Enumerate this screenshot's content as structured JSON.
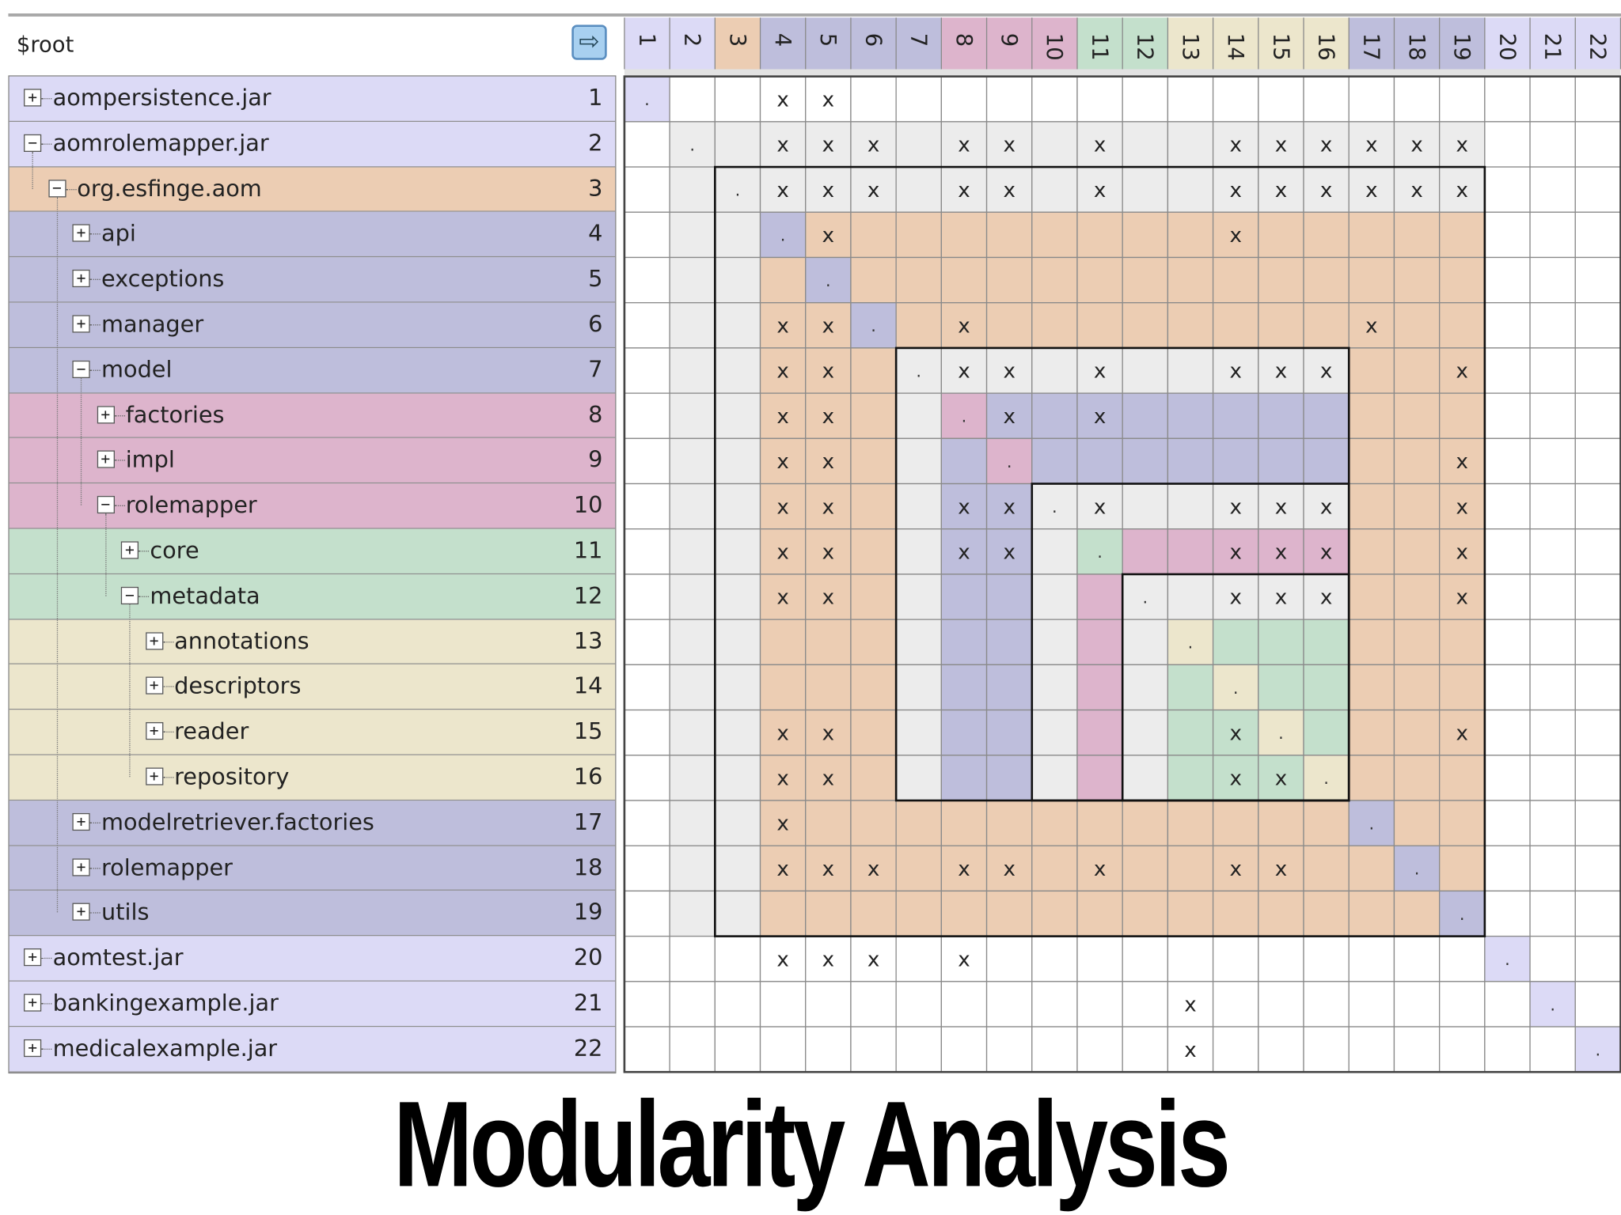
{
  "root": {
    "label": "$root",
    "button_icon": "arrow-right-icon"
  },
  "colors": {
    "white": "#ffffff",
    "lavender": "#dcdaf6",
    "peach": "#eccdb3",
    "blue": "#bebedc",
    "pink": "#ddb4cc",
    "mint": "#c4e0cc",
    "cream": "#ece6cc",
    "grey": "#ececec",
    "grid": "#8a8a8a",
    "box_border": "#111111"
  },
  "rows": [
    {
      "num": "1",
      "label": "aompersistence.jar",
      "level": 0,
      "expanded": false,
      "color": "lavender"
    },
    {
      "num": "2",
      "label": "aomrolemapper.jar",
      "level": 0,
      "expanded": true,
      "color": "lavender"
    },
    {
      "num": "3",
      "label": "org.esfinge.aom",
      "level": 1,
      "expanded": true,
      "color": "peach"
    },
    {
      "num": "4",
      "label": "api",
      "level": 2,
      "expanded": false,
      "color": "blue"
    },
    {
      "num": "5",
      "label": "exceptions",
      "level": 2,
      "expanded": false,
      "color": "blue"
    },
    {
      "num": "6",
      "label": "manager",
      "level": 2,
      "expanded": false,
      "color": "blue"
    },
    {
      "num": "7",
      "label": "model",
      "level": 2,
      "expanded": true,
      "color": "blue"
    },
    {
      "num": "8",
      "label": "factories",
      "level": 3,
      "expanded": false,
      "color": "pink"
    },
    {
      "num": "9",
      "label": "impl",
      "level": 3,
      "expanded": false,
      "color": "pink"
    },
    {
      "num": "10",
      "label": "rolemapper",
      "level": 3,
      "expanded": true,
      "color": "pink"
    },
    {
      "num": "11",
      "label": "core",
      "level": 4,
      "expanded": false,
      "color": "mint"
    },
    {
      "num": "12",
      "label": "metadata",
      "level": 4,
      "expanded": true,
      "color": "mint"
    },
    {
      "num": "13",
      "label": "annotations",
      "level": 5,
      "expanded": false,
      "color": "cream"
    },
    {
      "num": "14",
      "label": "descriptors",
      "level": 5,
      "expanded": false,
      "color": "cream"
    },
    {
      "num": "15",
      "label": "reader",
      "level": 5,
      "expanded": false,
      "color": "cream"
    },
    {
      "num": "16",
      "label": "repository",
      "level": 5,
      "expanded": false,
      "color": "cream"
    },
    {
      "num": "17",
      "label": "modelretriever.factories",
      "level": 2,
      "expanded": false,
      "color": "blue"
    },
    {
      "num": "18",
      "label": "rolemapper",
      "level": 2,
      "expanded": false,
      "color": "blue"
    },
    {
      "num": "19",
      "label": "utils",
      "level": 2,
      "expanded": false,
      "color": "blue"
    },
    {
      "num": "20",
      "label": "aomtest.jar",
      "level": 0,
      "expanded": false,
      "color": "lavender"
    },
    {
      "num": "21",
      "label": "bankingexample.jar",
      "level": 0,
      "expanded": false,
      "color": "lavender"
    },
    {
      "num": "22",
      "label": "medicalexample.jar",
      "level": 0,
      "expanded": false,
      "color": "lavender"
    }
  ],
  "column_header_colors": [
    "lavender",
    "lavender",
    "peach",
    "blue",
    "blue",
    "blue",
    "blue",
    "pink",
    "pink",
    "pink",
    "mint",
    "mint",
    "cream",
    "cream",
    "cream",
    "cream",
    "blue",
    "blue",
    "blue",
    "lavender",
    "lavender",
    "lavender"
  ],
  "matrix_fill": [
    [
      "lavender",
      "W",
      "W",
      "W",
      "W",
      "W",
      "W",
      "W",
      "W",
      "W",
      "W",
      "W",
      "W",
      "W",
      "W",
      "W",
      "W",
      "W",
      "W",
      "W",
      "W",
      "W"
    ],
    [
      "W",
      "grey",
      "grey",
      "grey",
      "grey",
      "grey",
      "grey",
      "grey",
      "grey",
      "grey",
      "grey",
      "grey",
      "grey",
      "grey",
      "grey",
      "grey",
      "grey",
      "grey",
      "grey",
      "W",
      "W",
      "W"
    ],
    [
      "W",
      "grey",
      "grey",
      "grey",
      "grey",
      "grey",
      "grey",
      "grey",
      "grey",
      "grey",
      "grey",
      "grey",
      "grey",
      "grey",
      "grey",
      "grey",
      "grey",
      "grey",
      "grey",
      "W",
      "W",
      "W"
    ],
    [
      "W",
      "grey",
      "grey",
      "blue",
      "peach",
      "peach",
      "peach",
      "peach",
      "peach",
      "peach",
      "peach",
      "peach",
      "peach",
      "peach",
      "peach",
      "peach",
      "peach",
      "peach",
      "peach",
      "W",
      "W",
      "W"
    ],
    [
      "W",
      "grey",
      "grey",
      "peach",
      "blue",
      "peach",
      "peach",
      "peach",
      "peach",
      "peach",
      "peach",
      "peach",
      "peach",
      "peach",
      "peach",
      "peach",
      "peach",
      "peach",
      "peach",
      "W",
      "W",
      "W"
    ],
    [
      "W",
      "grey",
      "grey",
      "peach",
      "peach",
      "blue",
      "peach",
      "peach",
      "peach",
      "peach",
      "peach",
      "peach",
      "peach",
      "peach",
      "peach",
      "peach",
      "peach",
      "peach",
      "peach",
      "W",
      "W",
      "W"
    ],
    [
      "W",
      "grey",
      "grey",
      "peach",
      "peach",
      "peach",
      "grey",
      "grey",
      "grey",
      "grey",
      "grey",
      "grey",
      "grey",
      "grey",
      "grey",
      "grey",
      "peach",
      "peach",
      "peach",
      "W",
      "W",
      "W"
    ],
    [
      "W",
      "grey",
      "grey",
      "peach",
      "peach",
      "peach",
      "grey",
      "pink",
      "blue",
      "blue",
      "blue",
      "blue",
      "blue",
      "blue",
      "blue",
      "blue",
      "peach",
      "peach",
      "peach",
      "W",
      "W",
      "W"
    ],
    [
      "W",
      "grey",
      "grey",
      "peach",
      "peach",
      "peach",
      "grey",
      "blue",
      "pink",
      "blue",
      "blue",
      "blue",
      "blue",
      "blue",
      "blue",
      "blue",
      "peach",
      "peach",
      "peach",
      "W",
      "W",
      "W"
    ],
    [
      "W",
      "grey",
      "grey",
      "peach",
      "peach",
      "peach",
      "grey",
      "blue",
      "blue",
      "grey",
      "grey",
      "grey",
      "grey",
      "grey",
      "grey",
      "grey",
      "peach",
      "peach",
      "peach",
      "W",
      "W",
      "W"
    ],
    [
      "W",
      "grey",
      "grey",
      "peach",
      "peach",
      "peach",
      "grey",
      "blue",
      "blue",
      "grey",
      "mint",
      "pink",
      "pink",
      "pink",
      "pink",
      "pink",
      "peach",
      "peach",
      "peach",
      "W",
      "W",
      "W"
    ],
    [
      "W",
      "grey",
      "grey",
      "peach",
      "peach",
      "peach",
      "grey",
      "blue",
      "blue",
      "grey",
      "pink",
      "grey",
      "grey",
      "grey",
      "grey",
      "grey",
      "peach",
      "peach",
      "peach",
      "W",
      "W",
      "W"
    ],
    [
      "W",
      "grey",
      "grey",
      "peach",
      "peach",
      "peach",
      "grey",
      "blue",
      "blue",
      "grey",
      "pink",
      "grey",
      "cream",
      "mint",
      "mint",
      "mint",
      "peach",
      "peach",
      "peach",
      "W",
      "W",
      "W"
    ],
    [
      "W",
      "grey",
      "grey",
      "peach",
      "peach",
      "peach",
      "grey",
      "blue",
      "blue",
      "grey",
      "pink",
      "grey",
      "mint",
      "cream",
      "mint",
      "mint",
      "peach",
      "peach",
      "peach",
      "W",
      "W",
      "W"
    ],
    [
      "W",
      "grey",
      "grey",
      "peach",
      "peach",
      "peach",
      "grey",
      "blue",
      "blue",
      "grey",
      "pink",
      "grey",
      "mint",
      "mint",
      "cream",
      "mint",
      "peach",
      "peach",
      "peach",
      "W",
      "W",
      "W"
    ],
    [
      "W",
      "grey",
      "grey",
      "peach",
      "peach",
      "peach",
      "grey",
      "blue",
      "blue",
      "grey",
      "pink",
      "grey",
      "mint",
      "mint",
      "mint",
      "cream",
      "peach",
      "peach",
      "peach",
      "W",
      "W",
      "W"
    ],
    [
      "W",
      "grey",
      "grey",
      "peach",
      "peach",
      "peach",
      "peach",
      "peach",
      "peach",
      "peach",
      "peach",
      "peach",
      "peach",
      "peach",
      "peach",
      "peach",
      "blue",
      "peach",
      "peach",
      "W",
      "W",
      "W"
    ],
    [
      "W",
      "grey",
      "grey",
      "peach",
      "peach",
      "peach",
      "peach",
      "peach",
      "peach",
      "peach",
      "peach",
      "peach",
      "peach",
      "peach",
      "peach",
      "peach",
      "peach",
      "blue",
      "peach",
      "W",
      "W",
      "W"
    ],
    [
      "W",
      "grey",
      "grey",
      "peach",
      "peach",
      "peach",
      "peach",
      "peach",
      "peach",
      "peach",
      "peach",
      "peach",
      "peach",
      "peach",
      "peach",
      "peach",
      "peach",
      "peach",
      "blue",
      "W",
      "W",
      "W"
    ],
    [
      "W",
      "W",
      "W",
      "W",
      "W",
      "W",
      "W",
      "W",
      "W",
      "W",
      "W",
      "W",
      "W",
      "W",
      "W",
      "W",
      "W",
      "W",
      "W",
      "lavender",
      "W",
      "W"
    ],
    [
      "W",
      "W",
      "W",
      "W",
      "W",
      "W",
      "W",
      "W",
      "W",
      "W",
      "W",
      "W",
      "W",
      "W",
      "W",
      "W",
      "W",
      "W",
      "W",
      "W",
      "lavender",
      "W"
    ],
    [
      "W",
      "W",
      "W",
      "W",
      "W",
      "W",
      "W",
      "W",
      "W",
      "W",
      "W",
      "W",
      "W",
      "W",
      "W",
      "W",
      "W",
      "W",
      "W",
      "W",
      "W",
      "lavender"
    ]
  ],
  "dependencies": [
    [
      1,
      4
    ],
    [
      1,
      5
    ],
    [
      2,
      4
    ],
    [
      2,
      5
    ],
    [
      2,
      6
    ],
    [
      2,
      8
    ],
    [
      2,
      9
    ],
    [
      2,
      11
    ],
    [
      2,
      14
    ],
    [
      2,
      15
    ],
    [
      2,
      16
    ],
    [
      2,
      17
    ],
    [
      2,
      18
    ],
    [
      2,
      19
    ],
    [
      3,
      4
    ],
    [
      3,
      5
    ],
    [
      3,
      6
    ],
    [
      3,
      8
    ],
    [
      3,
      9
    ],
    [
      3,
      11
    ],
    [
      3,
      14
    ],
    [
      3,
      15
    ],
    [
      3,
      16
    ],
    [
      3,
      17
    ],
    [
      3,
      18
    ],
    [
      3,
      19
    ],
    [
      4,
      5
    ],
    [
      4,
      14
    ],
    [
      6,
      4
    ],
    [
      6,
      5
    ],
    [
      6,
      8
    ],
    [
      6,
      17
    ],
    [
      7,
      4
    ],
    [
      7,
      5
    ],
    [
      7,
      8
    ],
    [
      7,
      9
    ],
    [
      7,
      11
    ],
    [
      7,
      14
    ],
    [
      7,
      15
    ],
    [
      7,
      16
    ],
    [
      7,
      19
    ],
    [
      8,
      4
    ],
    [
      8,
      5
    ],
    [
      8,
      9
    ],
    [
      8,
      11
    ],
    [
      9,
      4
    ],
    [
      9,
      5
    ],
    [
      9,
      19
    ],
    [
      10,
      4
    ],
    [
      10,
      5
    ],
    [
      10,
      8
    ],
    [
      10,
      9
    ],
    [
      10,
      11
    ],
    [
      10,
      14
    ],
    [
      10,
      15
    ],
    [
      10,
      16
    ],
    [
      10,
      19
    ],
    [
      11,
      4
    ],
    [
      11,
      5
    ],
    [
      11,
      8
    ],
    [
      11,
      9
    ],
    [
      11,
      14
    ],
    [
      11,
      15
    ],
    [
      11,
      16
    ],
    [
      11,
      19
    ],
    [
      12,
      4
    ],
    [
      12,
      5
    ],
    [
      12,
      14
    ],
    [
      12,
      15
    ],
    [
      12,
      16
    ],
    [
      12,
      19
    ],
    [
      15,
      4
    ],
    [
      15,
      5
    ],
    [
      15,
      14
    ],
    [
      15,
      19
    ],
    [
      16,
      4
    ],
    [
      16,
      5
    ],
    [
      16,
      14
    ],
    [
      16,
      15
    ],
    [
      17,
      4
    ],
    [
      18,
      4
    ],
    [
      18,
      5
    ],
    [
      18,
      6
    ],
    [
      18,
      8
    ],
    [
      18,
      9
    ],
    [
      18,
      11
    ],
    [
      18,
      14
    ],
    [
      18,
      15
    ],
    [
      20,
      4
    ],
    [
      20,
      5
    ],
    [
      20,
      6
    ],
    [
      20,
      8
    ],
    [
      21,
      13
    ],
    [
      22,
      13
    ]
  ],
  "dep_mark": "x",
  "diag_mark": ".",
  "title": "Modularity Analysis"
}
